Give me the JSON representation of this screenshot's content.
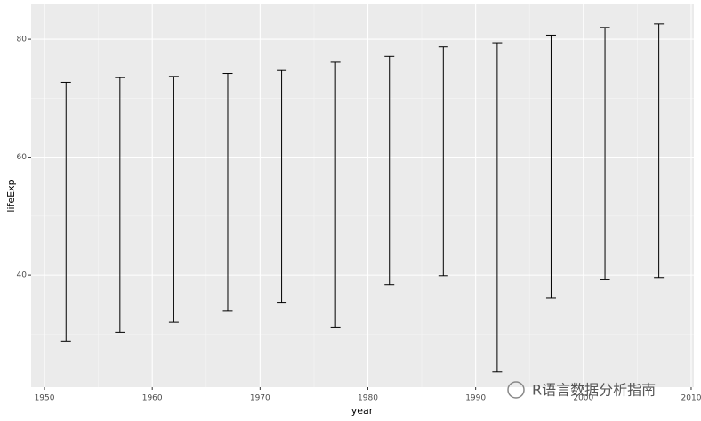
{
  "chart_data": {
    "type": "errorbar",
    "x_label": "year",
    "y_label": "lifeExp",
    "x": [
      1952,
      1957,
      1962,
      1967,
      1972,
      1977,
      1982,
      1987,
      1992,
      1997,
      2002,
      2007
    ],
    "ymin": [
      28.8,
      30.3,
      32.0,
      34.0,
      35.4,
      31.2,
      38.4,
      39.9,
      23.6,
      36.1,
      39.2,
      39.6
    ],
    "ymax": [
      72.7,
      73.5,
      73.7,
      74.2,
      74.7,
      76.1,
      77.1,
      78.7,
      79.4,
      80.7,
      82.0,
      82.6
    ],
    "color": "#000000",
    "xlim": [
      1948.76,
      2010.25
    ],
    "xticks": [
      1950,
      1960,
      1970,
      1980,
      1990,
      2000,
      2010
    ],
    "ylim": [
      21.0,
      85.9
    ],
    "yticks": [
      40,
      60,
      80
    ],
    "grid": true,
    "watermark": "R语言数据分析指南"
  }
}
